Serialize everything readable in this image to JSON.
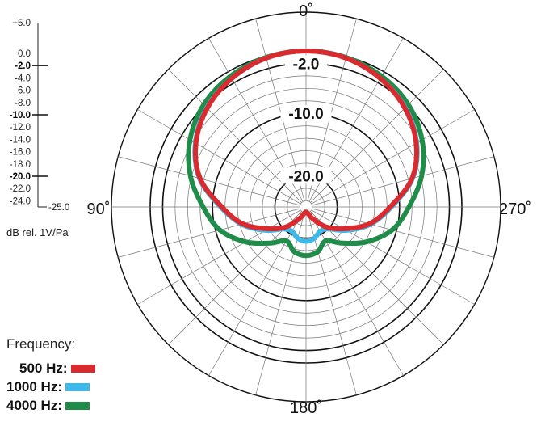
{
  "chart_data": {
    "type": "polar",
    "units_label": "dB rel. 1V/Pa",
    "scale_ticks": [
      "+5.0",
      "0.0",
      "-2.0",
      "-4.0",
      "-6.0",
      "-8.0",
      "-10.0",
      "-12.0",
      "-14.0",
      "-16.0",
      "-18.0",
      "-20.0",
      "-22.0",
      "-24.0",
      "-25.0"
    ],
    "scale_values": [
      5,
      0,
      -2,
      -4,
      -6,
      -8,
      -10,
      -12,
      -14,
      -16,
      -18,
      -20,
      -22,
      -24,
      -25
    ],
    "bold_ticks": [
      "-2.0",
      "-10.0",
      "-20.0"
    ],
    "rlim": [
      -25,
      5
    ],
    "ring_labels": [
      "-2.0",
      "-10.0",
      "-20.0"
    ],
    "ring_values": [
      -2,
      -10,
      -20
    ],
    "angle_labels": {
      "top": "0˚",
      "left": "90˚",
      "right": "270˚",
      "bottom": "180˚"
    },
    "angles_deg": [
      0,
      15,
      30,
      45,
      60,
      75,
      90,
      105,
      120,
      135,
      150,
      165,
      180
    ],
    "series": [
      {
        "name": "500 Hz",
        "color": "#d92b2f",
        "values": [
          0,
          -0.3,
          -1.2,
          -2.6,
          -4.6,
          -7.4,
          -11.5,
          -14.5,
          -18.0,
          -20.5,
          -22.8,
          -24.0,
          -24.2
        ]
      },
      {
        "name": "1000 Hz",
        "color": "#3db8e8",
        "values": [
          0,
          -0.3,
          -1.2,
          -2.5,
          -4.5,
          -7.3,
          -11.3,
          -14.3,
          -17.5,
          -20.0,
          -20.5,
          -19.8,
          -19.5
        ]
      },
      {
        "name": "4000 Hz",
        "color": "#1f8c4a",
        "values": [
          0,
          -0.2,
          -0.8,
          -1.8,
          -3.5,
          -5.8,
          -8.5,
          -10.7,
          -13.8,
          -16.8,
          -18.7,
          -17.6,
          -17.2
        ]
      }
    ]
  },
  "legend": {
    "title": "Frequency:",
    "items": [
      {
        "label": "500 Hz:",
        "color": "#d92b2f"
      },
      {
        "label": "1000 Hz:",
        "color": "#3db8e8"
      },
      {
        "label": "4000 Hz:",
        "color": "#1f8c4a"
      }
    ]
  }
}
